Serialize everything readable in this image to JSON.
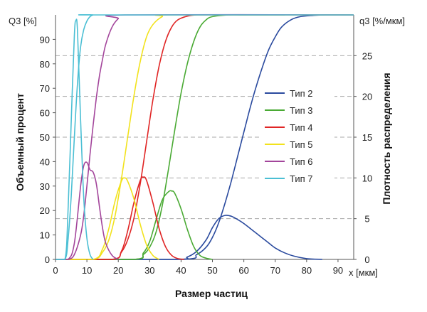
{
  "chart_data": {
    "type": "line",
    "title": "",
    "xlabel": "Размер частиц",
    "x_unit": "x [мкм]",
    "ylabel": "Объемный процент",
    "y_unit": "Q3 [%]",
    "y2label": "Плотность распределения",
    "y2_unit": "q3 [%/мкм]",
    "xlim": [
      0,
      95
    ],
    "ylim": [
      0,
      100
    ],
    "y2lim": [
      0,
      30
    ],
    "xticks": [
      0,
      10,
      20,
      30,
      40,
      50,
      60,
      70,
      80,
      90
    ],
    "yticks": [
      0,
      10,
      20,
      30,
      40,
      50,
      60,
      70,
      80,
      90
    ],
    "y2ticks": [
      0,
      5,
      10,
      15,
      20,
      25
    ],
    "grid": "dashed horizontal at right-axis ticks",
    "legend_position": "right",
    "series": [
      {
        "name": "Тип 2",
        "color": "#2a4a9e",
        "cumulative": {
          "x": [
            40,
            45,
            48,
            50,
            52,
            54,
            56,
            58,
            60,
            62,
            64,
            66,
            68,
            70,
            72,
            75,
            78,
            82,
            86,
            95
          ],
          "y": [
            0,
            2,
            5,
            9,
            15,
            23,
            32,
            42,
            52,
            62,
            71,
            79,
            86,
            91,
            95,
            98,
            99.3,
            99.8,
            100,
            100
          ]
        },
        "density": {
          "x": [
            38,
            42,
            45,
            48,
            50,
            52,
            54,
            56,
            58,
            60,
            62,
            64,
            66,
            68,
            70,
            73,
            76,
            80,
            85
          ],
          "y": [
            0,
            0.3,
            1.0,
            2.4,
            3.9,
            5.0,
            5.4,
            5.3,
            4.9,
            4.4,
            3.8,
            3.2,
            2.6,
            2.0,
            1.4,
            0.8,
            0.4,
            0.1,
            0
          ]
        }
      },
      {
        "name": "Тип 3",
        "color": "#4aaa34",
        "cumulative": {
          "x": [
            25,
            28,
            30,
            32,
            34,
            36,
            38,
            40,
            42,
            44,
            46,
            48,
            50,
            55,
            60,
            73
          ],
          "y": [
            0,
            2,
            5,
            11,
            22,
            37,
            53,
            68,
            80,
            89,
            95,
            98,
            99.3,
            100,
            100,
            100
          ]
        },
        "density": {
          "x": [
            25,
            28,
            30,
            32,
            34,
            36,
            37,
            38,
            40,
            42,
            44,
            46,
            48,
            50
          ],
          "y": [
            0,
            0.8,
            2.2,
            4.8,
            7.3,
            8.3,
            8.4,
            8.1,
            6.2,
            3.7,
            1.6,
            0.5,
            0.15,
            0
          ]
        }
      },
      {
        "name": "Тип 4",
        "color": "#e02525",
        "cumulative": {
          "x": [
            18,
            21,
            23,
            25,
            27,
            29,
            31,
            33,
            35,
            37,
            39,
            42,
            45,
            50,
            95
          ],
          "y": [
            0,
            3,
            8,
            17,
            31,
            48,
            65,
            79,
            89,
            95,
            98,
            99.5,
            100,
            100,
            100
          ]
        },
        "density": {
          "x": [
            18,
            21,
            23,
            25,
            27,
            28,
            29,
            31,
            33,
            35,
            37,
            39,
            41
          ],
          "y": [
            0,
            1.0,
            3.5,
            7.0,
            9.7,
            10.1,
            9.7,
            7.0,
            3.8,
            1.6,
            0.5,
            0.1,
            0
          ]
        }
      },
      {
        "name": "Тип 5",
        "color": "#f2e21c",
        "cumulative": {
          "x": [
            12,
            15,
            17,
            19,
            21,
            23,
            25,
            27,
            29,
            31,
            34,
            37,
            95
          ],
          "y": [
            0,
            3,
            8,
            18,
            33,
            50,
            67,
            81,
            91,
            96,
            99.3,
            100,
            100
          ]
        },
        "density": {
          "x": [
            12,
            15,
            17,
            19,
            21,
            22,
            23,
            25,
            27,
            29,
            31,
            33
          ],
          "y": [
            0,
            1.3,
            3.8,
            7.2,
            9.6,
            10.0,
            9.6,
            7.4,
            4.3,
            1.8,
            0.5,
            0
          ]
        }
      },
      {
        "name": "Тип 6",
        "color": "#a3459b",
        "cumulative": {
          "x": [
            4,
            6,
            8,
            9,
            10,
            11,
            12,
            13,
            14,
            15,
            16,
            18,
            20,
            22,
            95
          ],
          "y": [
            0,
            2,
            10,
            18,
            30,
            43,
            55,
            66,
            75,
            82,
            88,
            95,
            98.5,
            100,
            100
          ]
        },
        "density": {
          "x": [
            4,
            6,
            8,
            9,
            10,
            11,
            12,
            13,
            14,
            15,
            16,
            18,
            20
          ],
          "y": [
            0,
            2.0,
            9.0,
            11.5,
            11.9,
            11.0,
            10.7,
            9.3,
            6.5,
            3.8,
            2.0,
            0.5,
            0
          ]
        }
      },
      {
        "name": "Тип 7",
        "color": "#4bbfd4",
        "cumulative": {
          "x": [
            3,
            4,
            5,
            6,
            7,
            8,
            9,
            10,
            11,
            12,
            14,
            95
          ],
          "y": [
            0,
            8,
            26,
            50,
            72,
            87,
            94,
            97.5,
            99.3,
            100,
            100,
            100
          ]
        },
        "density": {
          "x": [
            3,
            4,
            5,
            6,
            6.5,
            7,
            8,
            9,
            10,
            11,
            12
          ],
          "y": [
            0,
            6.0,
            17.0,
            27.5,
            29.3,
            28.0,
            17.0,
            7.5,
            2.6,
            0.6,
            0
          ]
        }
      }
    ]
  }
}
